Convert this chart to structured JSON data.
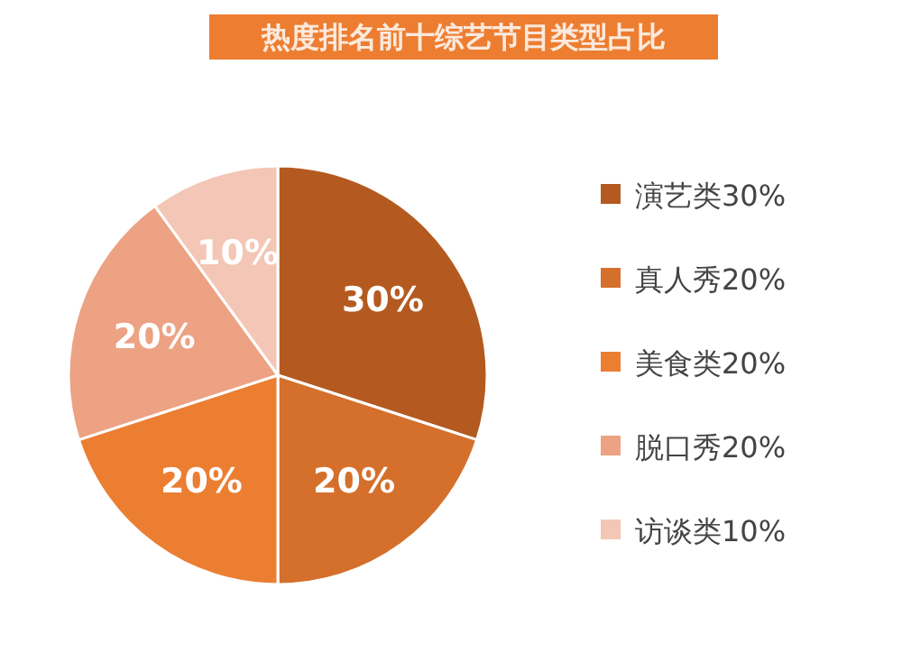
{
  "chart_data": {
    "type": "pie",
    "title": "热度排名前十综艺节目类型占比",
    "categories": [
      "演艺类",
      "真人秀",
      "美食类",
      "脱口秀",
      "访谈类"
    ],
    "values": [
      30,
      20,
      20,
      20,
      10
    ],
    "value_labels": [
      "30%",
      "20%",
      "20%",
      "20%",
      "10%"
    ],
    "colors": [
      "#b45a21",
      "#d4702c",
      "#ec7e32",
      "#eca283",
      "#f4c6b5"
    ],
    "legend": "right"
  }
}
